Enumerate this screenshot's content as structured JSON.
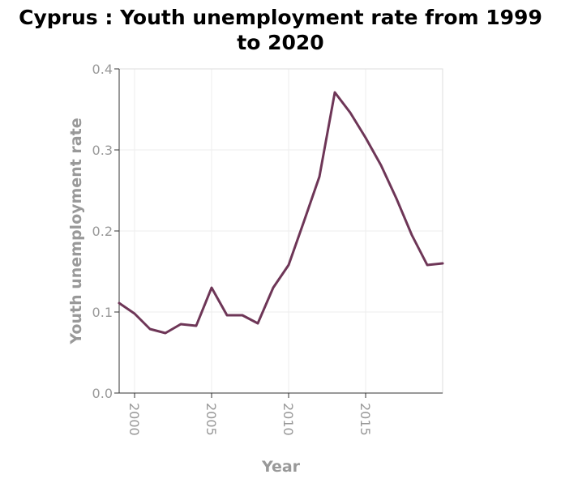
{
  "chart_data": {
    "type": "line",
    "title_lines": [
      "Cyprus : Youth unemployment rate from 1999",
      "to 2020"
    ],
    "xlabel": "Year",
    "ylabel": "Youth unemployment rate",
    "xlim": [
      1999,
      2020
    ],
    "ylim": [
      0,
      0.4
    ],
    "x_ticks": [
      2000,
      2005,
      2010,
      2015
    ],
    "x_tick_labels": [
      "2000",
      "2005",
      "2010",
      "2015"
    ],
    "y_ticks": [
      0,
      0.1,
      0.2,
      0.3,
      0.4
    ],
    "y_tick_labels": [
      "0.0",
      "0.1",
      "0.2",
      "0.3",
      "0.4"
    ],
    "grid": true,
    "line_color": "#6e3657",
    "grid_color": "#eeeeee",
    "series": [
      {
        "x": [
          1999,
          2000,
          2001,
          2002,
          2003,
          2004,
          2005,
          2006,
          2007,
          2008,
          2009,
          2010,
          2011,
          2012,
          2013,
          2014,
          2015,
          2016,
          2017,
          2018,
          2019,
          2020
        ],
        "values": [
          0.111,
          0.098,
          0.079,
          0.074,
          0.085,
          0.083,
          0.13,
          0.096,
          0.096,
          0.086,
          0.13,
          0.158,
          0.212,
          0.267,
          0.371,
          0.346,
          0.315,
          0.281,
          0.24,
          0.195,
          0.158,
          0.16
        ]
      }
    ]
  }
}
